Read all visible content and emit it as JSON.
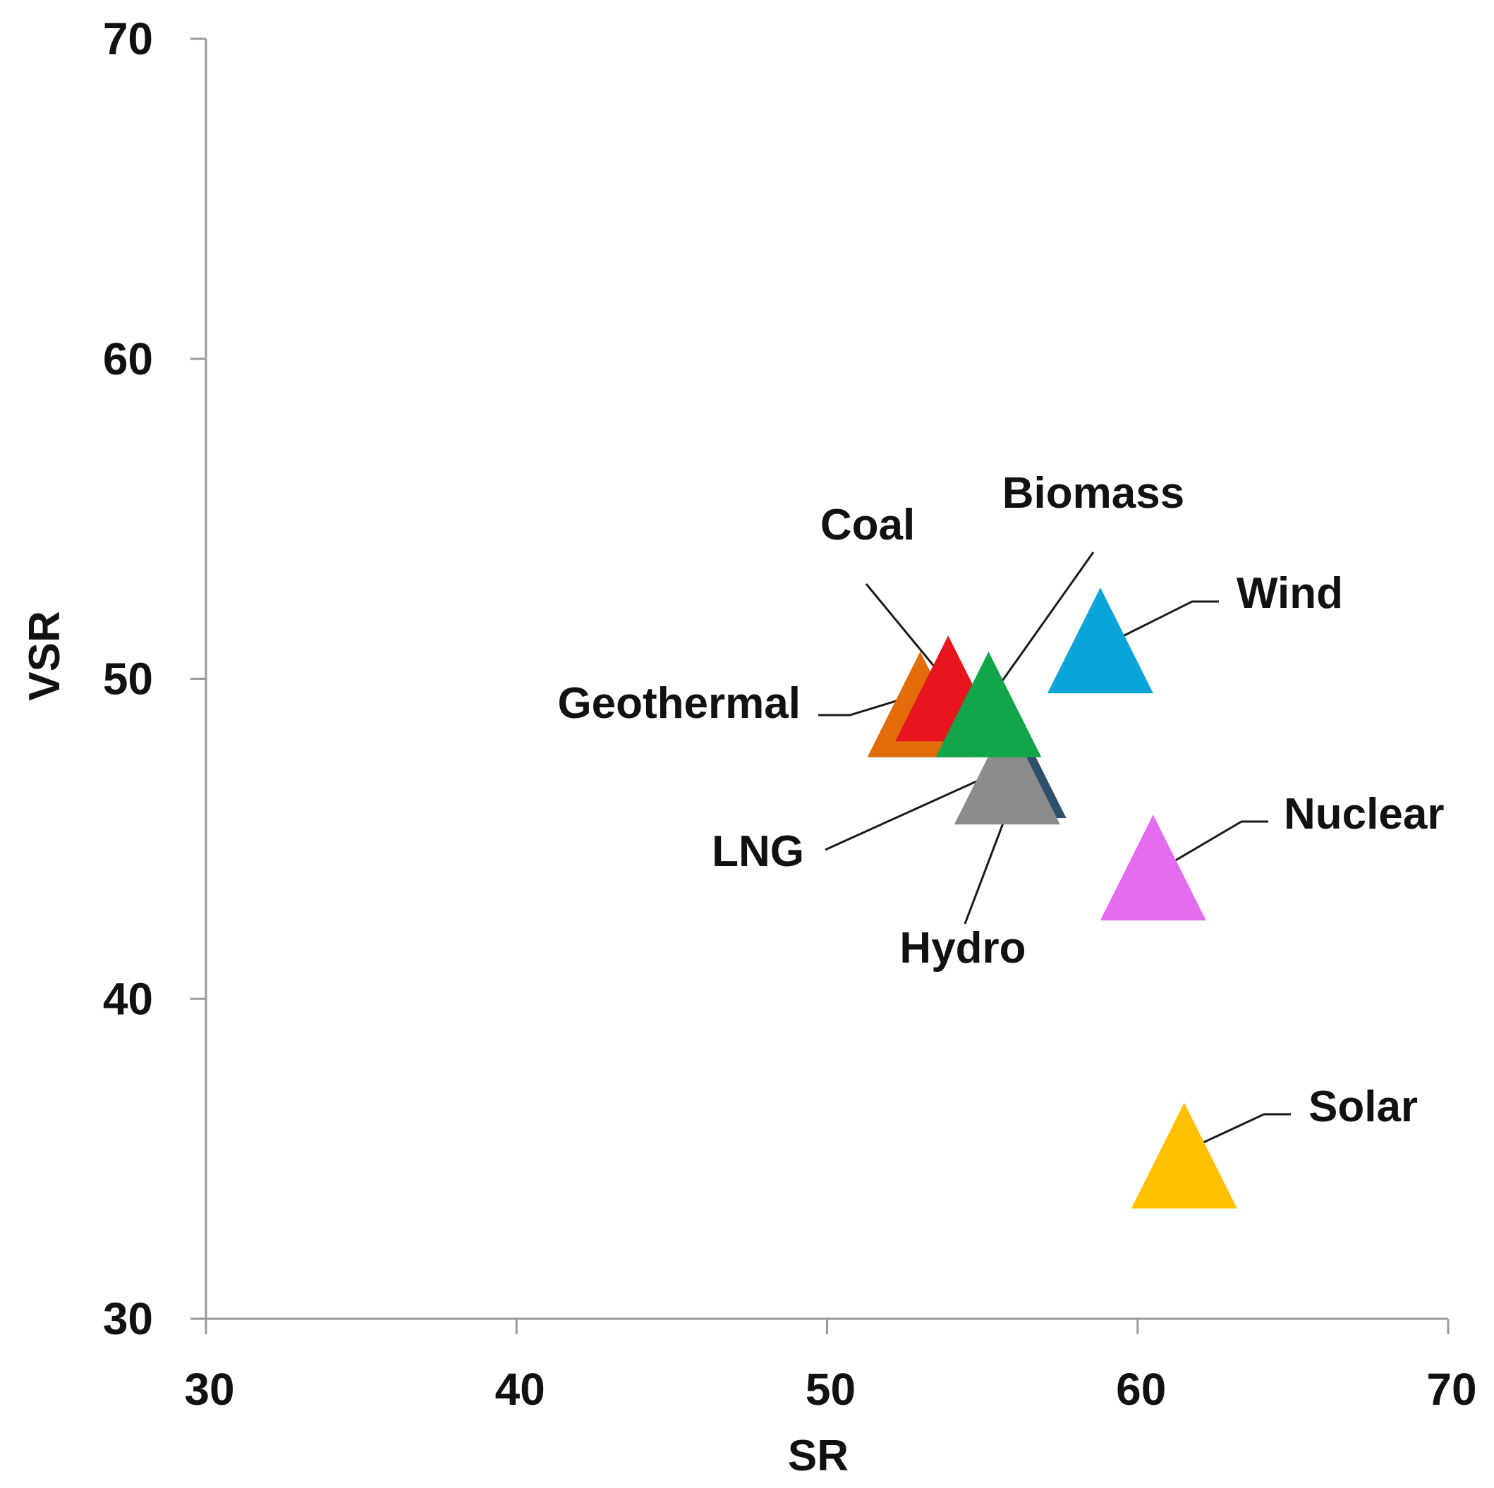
{
  "chart_data": {
    "type": "scatter",
    "title": "",
    "xlabel": "SR",
    "ylabel": "VSR",
    "xlim": [
      30,
      70
    ],
    "ylim": [
      30,
      70
    ],
    "xticks": [
      30,
      40,
      50,
      60,
      70
    ],
    "yticks": [
      30,
      40,
      50,
      60,
      70
    ],
    "x_tick_labels": [
      "30",
      "40",
      "50",
      "60",
      "70"
    ],
    "y_tick_labels": [
      "30",
      "40",
      "50",
      "60",
      "70"
    ],
    "grid": false,
    "legend": "none",
    "marker": "triangle",
    "points": [
      {
        "name": "Geothermal",
        "x": 53.0,
        "y": 49.0,
        "color": "#E36C0A"
      },
      {
        "name": "Coal",
        "x": 53.9,
        "y": 49.5,
        "color": "#E8141E"
      },
      {
        "name": "Hydro",
        "x": 56.0,
        "y": 47.1,
        "color": "#2F4F6F"
      },
      {
        "name": "LNG",
        "x": 55.8,
        "y": 46.9,
        "color": "#8C8C8C"
      },
      {
        "name": "Biomass",
        "x": 55.2,
        "y": 49.0,
        "color": "#12A64A"
      },
      {
        "name": "Wind",
        "x": 58.8,
        "y": 51.0,
        "color": "#0AA5D8"
      },
      {
        "name": "Nuclear",
        "x": 60.5,
        "y": 43.9,
        "color": "#E46CF0"
      },
      {
        "name": "Solar",
        "x": 61.5,
        "y": 34.9,
        "color": "#FFC000"
      }
    ]
  }
}
